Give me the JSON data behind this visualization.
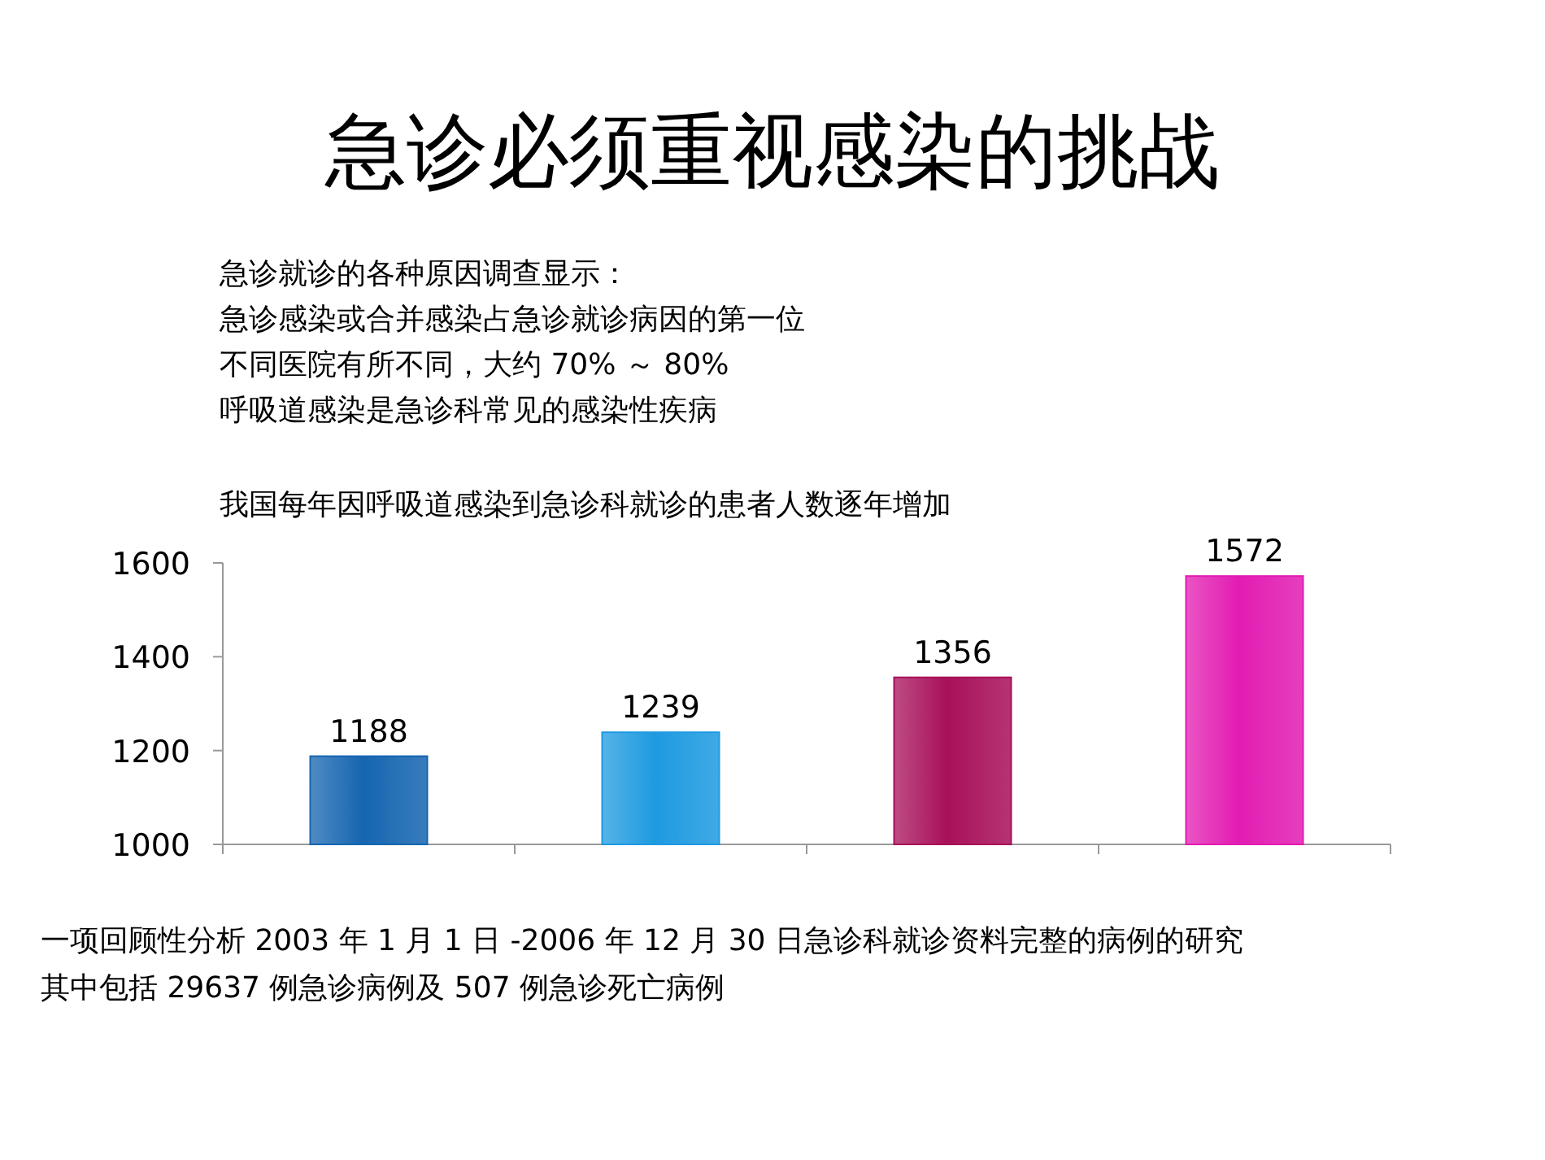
{
  "chart_data": {
    "type": "bar",
    "title": "急诊必须重视感染的挑战",
    "subtitle": "我国每年因呼吸道感染到急诊科就诊的患者人数逐年增加",
    "categories": [
      null,
      null,
      null,
      null
    ],
    "values": [
      1188,
      1239,
      1356,
      1572
    ],
    "colors": [
      "#1565b0",
      "#1e9ae0",
      "#a8105a",
      "#e21cb2"
    ],
    "data_labels": true,
    "ylim": [
      1000,
      1600
    ],
    "yticks": [
      1000,
      1200,
      1400,
      1600
    ],
    "grid": false,
    "annotations": [
      "急诊就诊的各种原因调查显示：",
      "急诊感染或合并感染占急诊就诊病因的第一位",
      "不同医院有所不同，大约 70% ～ 80%",
      "呼吸道感染是急诊科常见的感染性疾病",
      "一项回顾性分析 2003 年 1 月 1 日 -2006 年 12 月 30 日急诊科就诊资料完整的病例的研究",
      "其中包括 29637 例急诊病例及 507 例急诊死亡病例"
    ]
  }
}
